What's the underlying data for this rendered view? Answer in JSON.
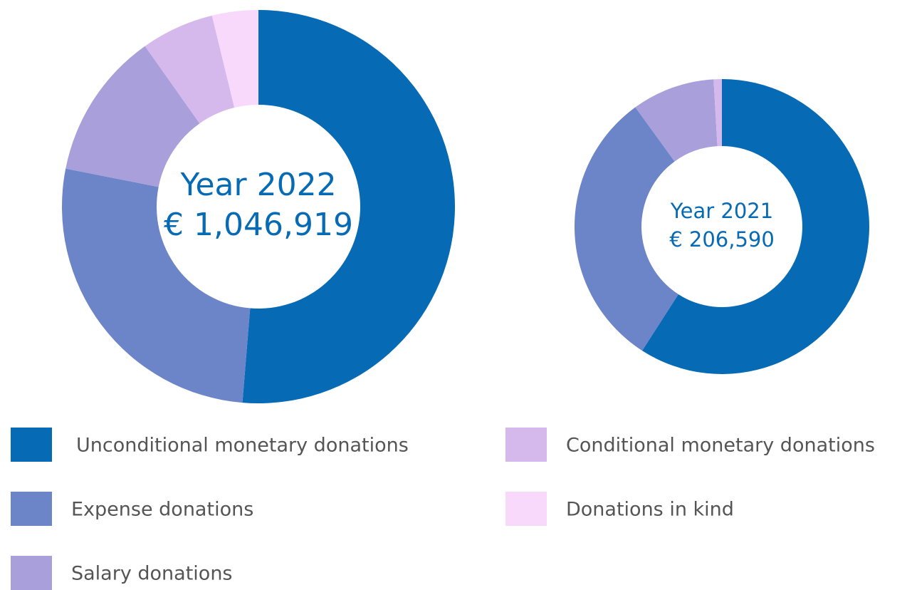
{
  "chart_data": [
    {
      "type": "donut",
      "title": "Year 2022",
      "subtitle": "€ 1,046,919",
      "categories": [
        "Unconditional monetary donations",
        "Expense donations",
        "Salary donations",
        "Conditional monetary donations",
        "Donations in kind"
      ],
      "values": [
        51.3,
        26.8,
        12.1,
        6.0,
        3.8
      ],
      "colors": [
        "#066bb4",
        "#6c84c8",
        "#a89fdb",
        "#d5b9ec",
        "#f8d9fc"
      ]
    },
    {
      "type": "donut",
      "title": "Year 2021",
      "subtitle": "€ 206,590",
      "categories": [
        "Unconditional monetary donations",
        "Expense donations",
        "Salary donations",
        "Conditional monetary donations",
        "Donations in kind"
      ],
      "values": [
        59.1,
        30.9,
        9.1,
        0.9,
        0
      ],
      "colors": [
        "#066bb4",
        "#6c84c8",
        "#a89fdb",
        "#d5b9ec",
        "#f8d9fc"
      ]
    }
  ]
}
